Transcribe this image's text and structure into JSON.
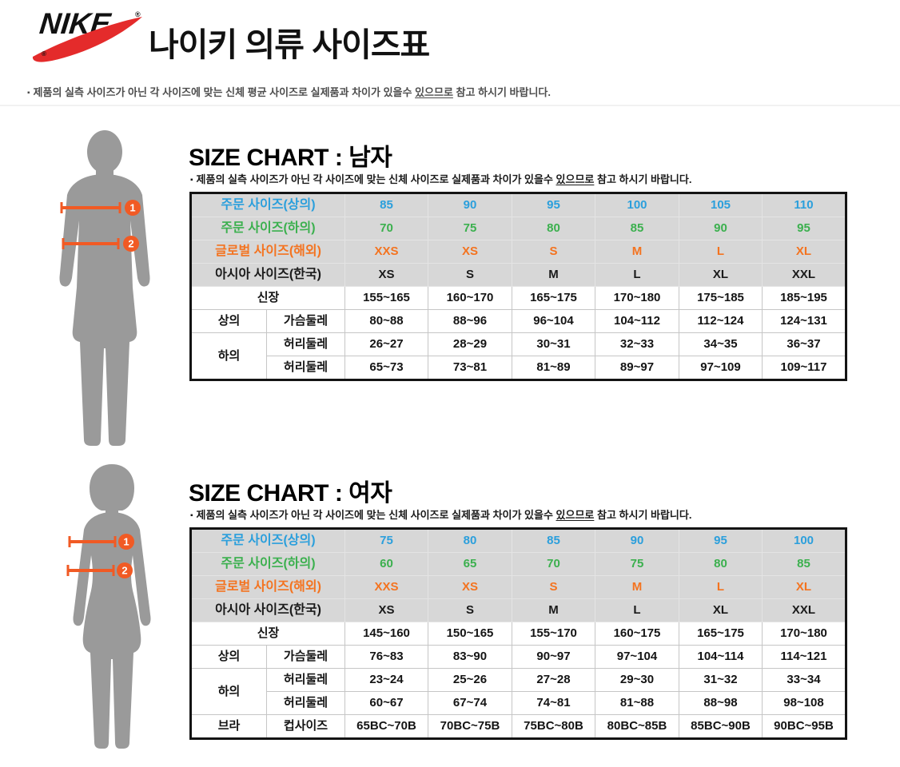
{
  "page": {
    "brand": "NIKE",
    "registered": "®",
    "title": "나이키 의류 사이즈표",
    "top_note": {
      "bullet": "▪",
      "prefix": "제품의 실측 사이즈가 아닌 각 사이즈에 맞는 신체 평균 사이즈로 실제품과 차이가 있을수 ",
      "underlined": "있으므로",
      "suffix": " 참고 하시기 바랍니다."
    }
  },
  "colors": {
    "order_top_blue": "#2b9fdc",
    "order_bottom_green": "#3bb04e",
    "global_orange": "#f4731f",
    "asia_black": "#1a1a1a",
    "arrow_orange": "#f15a24",
    "swoosh_red": "#e42b2b",
    "silhouette_grey": "#9a9a9a",
    "table_header_bg": "#d7d7d7"
  },
  "figures": {
    "male": {
      "badge1": "1",
      "badge2": "2"
    },
    "female": {
      "badge1": "1",
      "badge2": "2"
    }
  },
  "sections": [
    {
      "id": "men",
      "title": "SIZE CHART : 남자",
      "note": {
        "bullet": "▪",
        "prefix": "제품의 실측 사이즈가 아닌 각 사이즈에 맞는 신체 사이즈로 실제품과 차이가 있을수 ",
        "underlined": "있으므로",
        "suffix": " 참고 하시기 바랍니다."
      },
      "table": {
        "header_rows": [
          {
            "label": "주문 사이즈(상의)",
            "color": "#2b9fdc",
            "values": [
              "85",
              "90",
              "95",
              "100",
              "105",
              "110"
            ]
          },
          {
            "label": "주문 사이즈(하의)",
            "color": "#3bb04e",
            "values": [
              "70",
              "75",
              "80",
              "85",
              "90",
              "95"
            ]
          },
          {
            "label": "글로벌 사이즈(해외)",
            "color": "#f4731f",
            "values": [
              "XXS",
              "XS",
              "S",
              "M",
              "L",
              "XL"
            ]
          },
          {
            "label": "아시아 사이즈(한국)",
            "color": "#1a1a1a",
            "values": [
              "XS",
              "S",
              "M",
              "L",
              "XL",
              "XXL"
            ]
          }
        ],
        "body_rows": [
          {
            "span": 2,
            "label": "신장",
            "values": [
              "155~165",
              "160~170",
              "165~175",
              "170~180",
              "175~185",
              "185~195"
            ]
          },
          {
            "group": {
              "label": "상의",
              "rowspan": 1
            },
            "label": "가슴둘레",
            "values": [
              "80~88",
              "88~96",
              "96~104",
              "104~112",
              "112~124",
              "124~131"
            ]
          },
          {
            "group": {
              "label": "하의",
              "rowspan": 2
            },
            "label": "허리둘레",
            "values": [
              "26~27",
              "28~29",
              "30~31",
              "32~33",
              "34~35",
              "36~37"
            ]
          },
          {
            "label": "허리둘레",
            "values": [
              "65~73",
              "73~81",
              "81~89",
              "89~97",
              "97~109",
              "109~117"
            ]
          }
        ]
      }
    },
    {
      "id": "women",
      "title": "SIZE CHART : 여자",
      "note": {
        "bullet": "▪",
        "prefix": "제품의 실측 사이즈가 아닌 각 사이즈에 맞는 신체 사이즈로 실제품과 차이가 있을수 ",
        "underlined": "있으므로",
        "suffix": " 참고 하시기 바랍니다."
      },
      "table": {
        "header_rows": [
          {
            "label": "주문 사이즈(상의)",
            "color": "#2b9fdc",
            "values": [
              "75",
              "80",
              "85",
              "90",
              "95",
              "100"
            ]
          },
          {
            "label": "주문 사이즈(하의)",
            "color": "#3bb04e",
            "values": [
              "60",
              "65",
              "70",
              "75",
              "80",
              "85"
            ]
          },
          {
            "label": "글로벌 사이즈(해외)",
            "color": "#f4731f",
            "values": [
              "XXS",
              "XS",
              "S",
              "M",
              "L",
              "XL"
            ]
          },
          {
            "label": "아시아 사이즈(한국)",
            "color": "#1a1a1a",
            "values": [
              "XS",
              "S",
              "M",
              "L",
              "XL",
              "XXL"
            ]
          }
        ],
        "body_rows": [
          {
            "span": 2,
            "label": "신장",
            "values": [
              "145~160",
              "150~165",
              "155~170",
              "160~175",
              "165~175",
              "170~180"
            ]
          },
          {
            "group": {
              "label": "상의",
              "rowspan": 1
            },
            "label": "가슴둘레",
            "values": [
              "76~83",
              "83~90",
              "90~97",
              "97~104",
              "104~114",
              "114~121"
            ]
          },
          {
            "group": {
              "label": "하의",
              "rowspan": 2
            },
            "label": "허리둘레",
            "values": [
              "23~24",
              "25~26",
              "27~28",
              "29~30",
              "31~32",
              "33~34"
            ]
          },
          {
            "label": "허리둘레",
            "values": [
              "60~67",
              "67~74",
              "74~81",
              "81~88",
              "88~98",
              "98~108"
            ]
          },
          {
            "group": {
              "label": "브라",
              "rowspan": 1
            },
            "label": "컵사이즈",
            "values": [
              "65BC~70B",
              "70BC~75B",
              "75BC~80B",
              "80BC~85B",
              "85BC~90B",
              "90BC~95B"
            ]
          }
        ]
      }
    }
  ]
}
